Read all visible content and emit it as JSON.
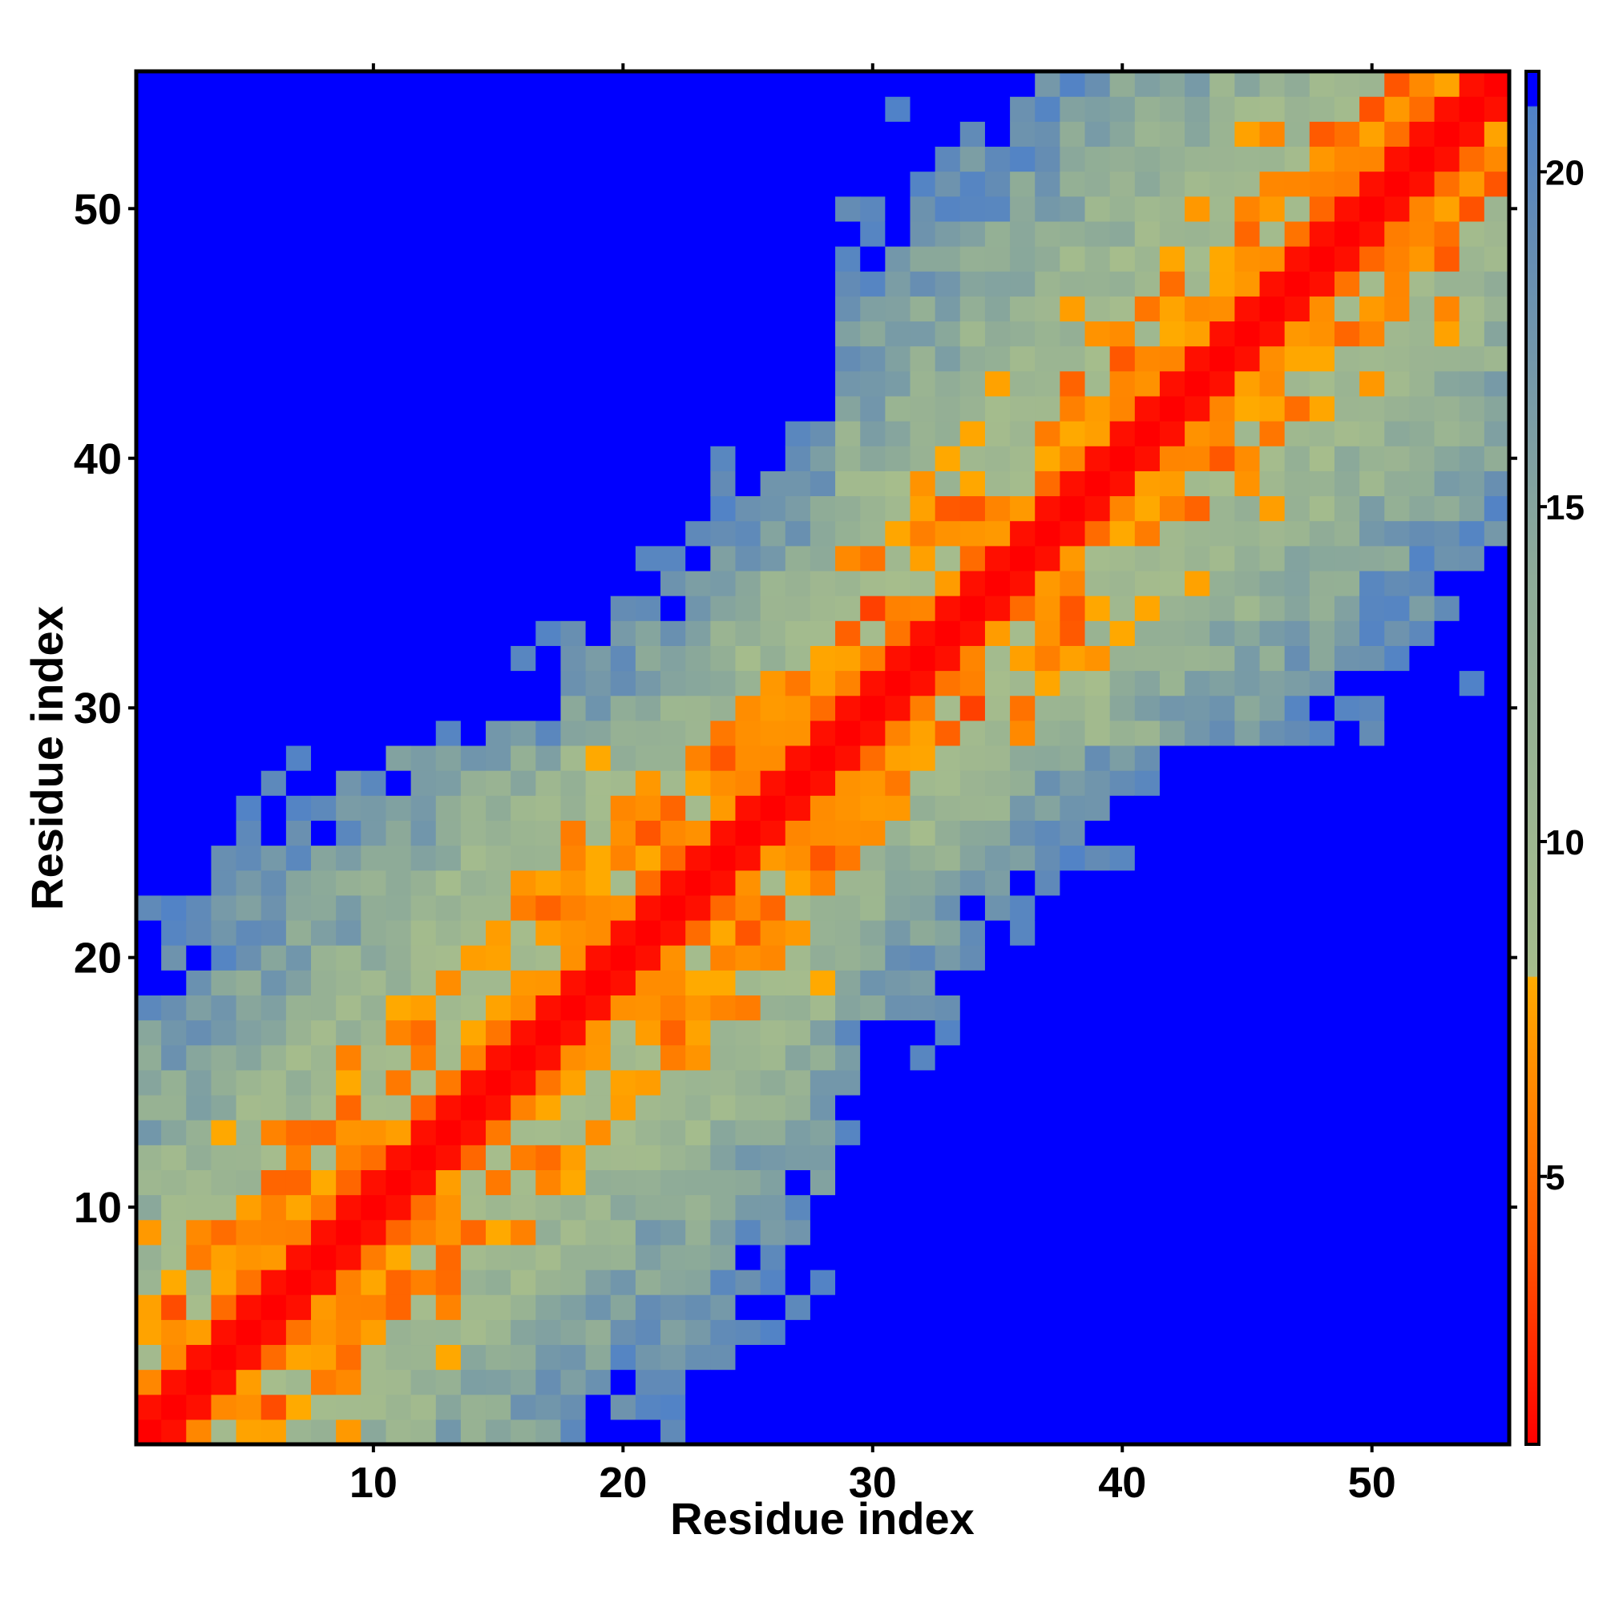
{
  "chart_data": {
    "type": "heatmap",
    "title": "",
    "xlabel": "Residue index",
    "ylabel": "Residue index",
    "n_residues": 55,
    "xlim": [
      1,
      55
    ],
    "ylim": [
      1,
      55
    ],
    "x_ticks": [
      10,
      20,
      30,
      40,
      50
    ],
    "y_ticks": [
      10,
      20,
      30,
      40,
      50
    ],
    "colorbar": {
      "ticks": [
        5,
        10,
        15,
        20
      ],
      "range": [
        1,
        21.5
      ],
      "colormap": [
        {
          "value": 1.0,
          "color": "#ff0000"
        },
        {
          "value": 4.0,
          "color": "#ff5a00"
        },
        {
          "value": 8.0,
          "color": "#ffab00"
        },
        {
          "value": 8.01,
          "color": "#a6bd8c"
        },
        {
          "value": 14.0,
          "color": "#8eab98"
        },
        {
          "value": 19.0,
          "color": "#648cb4"
        },
        {
          "value": 21.0,
          "color": "#5082c8"
        },
        {
          "value": 21.01,
          "color": "#0000ff"
        }
      ]
    },
    "matrix_description": "Symmetric pairwise residue distance map; red near diagonal (small distances), blue far off-diagonal (large distances, capped)",
    "distance_model": {
      "lower_left_block": [
        1,
        28
      ],
      "upper_right_block": [
        28,
        55
      ],
      "intra_block_scale": 0.55,
      "cross_block_scale": 0.75,
      "cap": 21.5
    },
    "grid": false,
    "legend": "colorbar-right"
  }
}
